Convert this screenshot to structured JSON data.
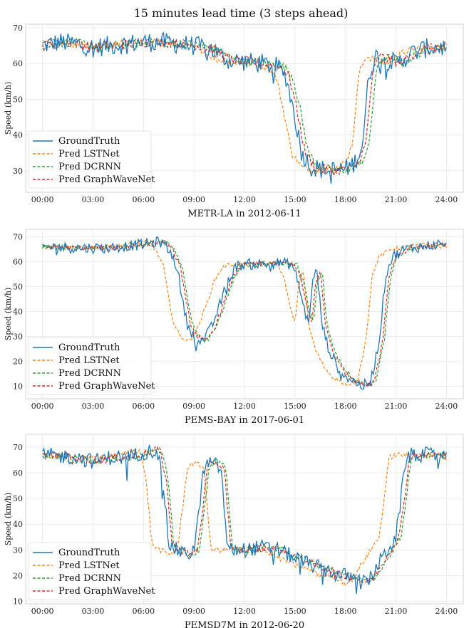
{
  "suptitle": "15 minutes lead time (3 steps ahead)",
  "colors": {
    "GroundTruth": "#1f77b4",
    "Pred LSTNet": "#ff7f0e",
    "Pred DCRNN": "#2ca02c",
    "Pred GraphWaveNet": "#d62728"
  },
  "chart_data": [
    {
      "type": "line",
      "title": "METR-LA in 2012-06-11",
      "ylabel": "Speed (km/h)",
      "x_ticks": [
        "00:00",
        "03:00",
        "06:00",
        "09:00",
        "12:00",
        "15:00",
        "18:00",
        "21:00",
        "24:00"
      ],
      "xlim_hours": [
        -1,
        25
      ],
      "ylim": [
        24,
        71
      ],
      "y_ticks": [
        30,
        40,
        50,
        60,
        70
      ],
      "grid": true,
      "legend": "bottom-left",
      "series_names": [
        "GroundTruth",
        "Pred LSTNet",
        "Pred DCRNN",
        "Pred GraphWaveNet"
      ],
      "profile": [
        [
          0,
          65
        ],
        [
          1,
          66
        ],
        [
          2,
          65.5
        ],
        [
          3,
          64.5
        ],
        [
          4,
          65
        ],
        [
          5,
          65.5
        ],
        [
          6,
          66
        ],
        [
          7,
          66
        ],
        [
          8,
          65.5
        ],
        [
          9,
          65
        ],
        [
          10,
          64
        ],
        [
          11,
          61
        ],
        [
          12,
          60.5
        ],
        [
          13,
          60
        ],
        [
          14,
          59
        ],
        [
          14.5,
          56
        ],
        [
          15,
          45
        ],
        [
          15.4,
          35
        ],
        [
          16,
          31
        ],
        [
          17,
          30
        ],
        [
          18,
          30.5
        ],
        [
          18.5,
          32
        ],
        [
          19,
          37
        ],
        [
          19.4,
          57
        ],
        [
          19.8,
          62
        ],
        [
          20.5,
          61
        ],
        [
          21,
          60
        ],
        [
          22,
          63
        ],
        [
          23,
          64.5
        ],
        [
          24,
          64.5
        ]
      ],
      "lstnet_shift_hours": -0.6,
      "dcrnn_shift_hours": 0.4,
      "gwn_shift_hours": 0.2,
      "noise": 2.8
    },
    {
      "type": "line",
      "title": "PEMS-BAY in 2017-06-01",
      "ylabel": "Speed (km/h)",
      "x_ticks": [
        "00:00",
        "03:00",
        "06:00",
        "09:00",
        "12:00",
        "15:00",
        "18:00",
        "21:00",
        "24:00"
      ],
      "xlim_hours": [
        -1,
        25
      ],
      "ylim": [
        5,
        73
      ],
      "y_ticks": [
        10,
        20,
        30,
        40,
        50,
        60,
        70
      ],
      "grid": true,
      "legend": "bottom-left",
      "series_names": [
        "GroundTruth",
        "Pred LSTNet",
        "Pred DCRNN",
        "Pred GraphWaveNet"
      ],
      "profile": [
        [
          0,
          66
        ],
        [
          2,
          65.5
        ],
        [
          4,
          65.5
        ],
        [
          6,
          67
        ],
        [
          7,
          68
        ],
        [
          7.5,
          65
        ],
        [
          8,
          58
        ],
        [
          8.3,
          45
        ],
        [
          8.6,
          35
        ],
        [
          9,
          30
        ],
        [
          9.5,
          28
        ],
        [
          10,
          33
        ],
        [
          10.5,
          42
        ],
        [
          11,
          52
        ],
        [
          11.5,
          58
        ],
        [
          12,
          59
        ],
        [
          13,
          59
        ],
        [
          14,
          59.5
        ],
        [
          14.8,
          59
        ],
        [
          15.2,
          52
        ],
        [
          15.5,
          42
        ],
        [
          15.8,
          35
        ],
        [
          16,
          50
        ],
        [
          16.3,
          57
        ],
        [
          16.6,
          35
        ],
        [
          17,
          25
        ],
        [
          17.5,
          18
        ],
        [
          18,
          14
        ],
        [
          18.5,
          12
        ],
        [
          19,
          10
        ],
        [
          19.5,
          12
        ],
        [
          20,
          28
        ],
        [
          20.4,
          55
        ],
        [
          20.8,
          62
        ],
        [
          21.5,
          65
        ],
        [
          22.5,
          66
        ],
        [
          23.5,
          67
        ],
        [
          24,
          66
        ]
      ],
      "lstnet_shift_hours": -0.8,
      "dcrnn_shift_hours": 0.3,
      "gwn_shift_hours": 0.2,
      "noise": 2.2
    },
    {
      "type": "line",
      "title": "PEMSD7M in 2012-06-20",
      "ylabel": "Speed (km/h)",
      "x_ticks": [
        "00:00",
        "03:00",
        "06:00",
        "09:00",
        "12:00",
        "15:00",
        "18:00",
        "21:00",
        "24:00"
      ],
      "xlim_hours": [
        -1,
        25
      ],
      "ylim": [
        9,
        75
      ],
      "y_ticks": [
        10,
        20,
        30,
        40,
        50,
        60,
        70
      ],
      "grid": true,
      "legend": "bottom-left",
      "series_names": [
        "GroundTruth",
        "Pred LSTNet",
        "Pred DCRNN",
        "Pred GraphWaveNet"
      ],
      "profile": [
        [
          0,
          67
        ],
        [
          2,
          66
        ],
        [
          3,
          64.5
        ],
        [
          4,
          66
        ],
        [
          5,
          66
        ],
        [
          6,
          68
        ],
        [
          6.8,
          69
        ],
        [
          7.2,
          55
        ],
        [
          7.5,
          32
        ],
        [
          8,
          30
        ],
        [
          8.5,
          28
        ],
        [
          9,
          30
        ],
        [
          9.3,
          45
        ],
        [
          9.6,
          62
        ],
        [
          10,
          64
        ],
        [
          10.6,
          62
        ],
        [
          11,
          30
        ],
        [
          12,
          30
        ],
        [
          13,
          31
        ],
        [
          14,
          30
        ],
        [
          15,
          27
        ],
        [
          16,
          24
        ],
        [
          17,
          22
        ],
        [
          17.5,
          20
        ],
        [
          18,
          20
        ],
        [
          18.5,
          19
        ],
        [
          19,
          17
        ],
        [
          19.5,
          19
        ],
        [
          20,
          25
        ],
        [
          20.5,
          30
        ],
        [
          21,
          35
        ],
        [
          21.3,
          50
        ],
        [
          21.6,
          66
        ],
        [
          22,
          67
        ],
        [
          23,
          67
        ],
        [
          24,
          66.5
        ]
      ],
      "lstnet_shift_hours": -1.0,
      "dcrnn_shift_hours": 0.3,
      "gwn_shift_hours": 0.2,
      "noise": 3.0
    }
  ]
}
